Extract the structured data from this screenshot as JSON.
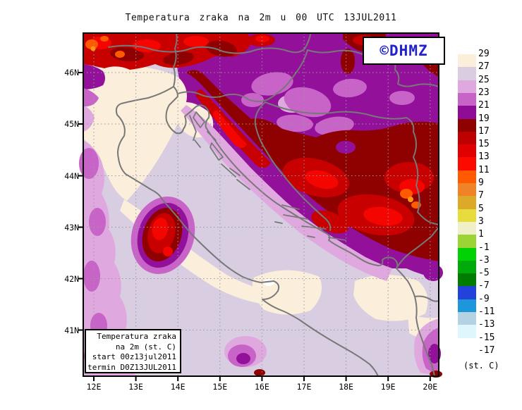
{
  "title": "Temperatura zraka na 2m u 00 UTC 13JUL2011",
  "watermark": {
    "label": "©DHMZ",
    "color": "#2222cc"
  },
  "info_box": {
    "lines": [
      "Temperatura zraka",
      "na 2m (st. C)",
      "start 00z13jul2011",
      "termin D0Z13JUL2011"
    ]
  },
  "axes": {
    "lat_labels": [
      "46N",
      "45N",
      "44N",
      "43N",
      "42N",
      "41N"
    ],
    "lon_labels": [
      "12E",
      "13E",
      "14E",
      "15E",
      "16E",
      "17E",
      "18E",
      "19E",
      "20E"
    ]
  },
  "legend": {
    "unit": "(st. C)",
    "tick_labels": [
      "29",
      "27",
      "25",
      "23",
      "21",
      "19",
      "17",
      "15",
      "13",
      "11",
      "9",
      "7",
      "5",
      "3",
      "1",
      "-1",
      "-3",
      "-5",
      "-7",
      "-9",
      "-11",
      "-13",
      "-15",
      "-17"
    ],
    "band_colors": [
      "#fbeeda",
      "#d8cde1",
      "#dfa9df",
      "#c863c8",
      "#8f0d96",
      "#8f0000",
      "#be0000",
      "#e00000",
      "#fc0a00",
      "#ff5a00",
      "#f08228",
      "#dcaa28",
      "#e6dc3c",
      "#f0f0c8",
      "#9cd435",
      "#00d205",
      "#00aa0a",
      "#007d00",
      "#2341db",
      "#1e96dc",
      "#b4d2e1",
      "#dff7fc"
    ]
  },
  "palette": {
    "cream": "#fbeeda",
    "lavender": "#d8cde1",
    "plum": "#dfa9df",
    "plumLight": "#efd9ef",
    "orchid": "#c863c8",
    "purple": "#93109a",
    "darkRed": "#8f0000",
    "red": "#c80000",
    "brightRed": "#f50500",
    "orangeRed": "#ff5a00",
    "orange": "#ff9614",
    "white": "#ffffff",
    "line": "#787878",
    "grid": "#9a9a9a",
    "frame": "#000000"
  }
}
